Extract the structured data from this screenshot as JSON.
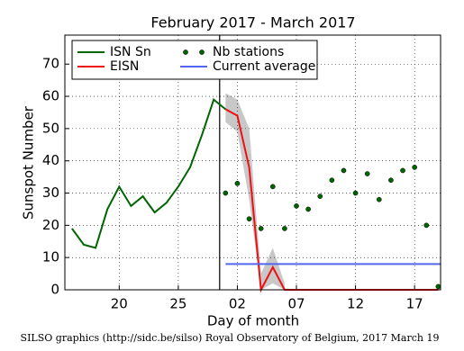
{
  "chart_data": {
    "type": "line",
    "title": "February 2017 - March 2017",
    "xlabel": "Day of month",
    "ylabel": "Sunspot Number",
    "footer": "SILSO graphics (http://sidc.be/silso) Royal Observatory of Belgium, 2017 March 19",
    "xlim": [
      15.4,
      47.2
    ],
    "ylim": [
      0,
      79
    ],
    "xticks": [
      20,
      25,
      {
        "value": 30,
        "label": "02"
      },
      {
        "value": 35,
        "label": "07"
      },
      {
        "value": 40,
        "label": "12"
      },
      {
        "value": 45,
        "label": "17"
      }
    ],
    "yticks": [
      0,
      10,
      20,
      30,
      40,
      50,
      60,
      70
    ],
    "grid": true,
    "vline_x": 28.5,
    "band": {
      "color": "#c8c8c8",
      "x": [
        29,
        30,
        31,
        32,
        33,
        34
      ],
      "upper": [
        61,
        59,
        50,
        5,
        13,
        2
      ],
      "lower": [
        52,
        49,
        28,
        0,
        2,
        0
      ]
    },
    "series": [
      {
        "name": "ISN Sn",
        "color": "#006400",
        "style": "line",
        "x": [
          16,
          17,
          18,
          19,
          20,
          21,
          22,
          23,
          24,
          25,
          26,
          27,
          28,
          29
        ],
        "values": [
          19,
          14,
          13,
          25,
          32,
          26,
          29,
          24,
          27,
          32,
          38,
          48,
          59,
          56
        ]
      },
      {
        "name": "EISN",
        "color": "#ee1111",
        "style": "line",
        "x": [
          29,
          30,
          31,
          32,
          33,
          34,
          35,
          36,
          37,
          38,
          39,
          40,
          41,
          42,
          43,
          44,
          45,
          46,
          47
        ],
        "values": [
          56,
          54,
          38,
          0,
          7,
          0,
          0,
          0,
          0,
          0,
          0,
          0,
          0,
          0,
          0,
          0,
          0,
          0,
          0
        ]
      },
      {
        "name": "Nb stations",
        "color": "#006400",
        "style": "dots",
        "x": [
          29,
          30,
          31,
          32,
          33,
          34,
          35,
          36,
          37,
          38,
          39,
          40,
          41,
          42,
          43,
          44,
          45,
          46,
          47
        ],
        "values": [
          30,
          33,
          22,
          19,
          32,
          19,
          26,
          25,
          29,
          34,
          37,
          30,
          36,
          28,
          34,
          37,
          38,
          20,
          1
        ]
      },
      {
        "name": "Current average",
        "color": "#5566ee",
        "style": "line",
        "x": [
          29,
          47.2
        ],
        "values": [
          8,
          8
        ]
      }
    ]
  }
}
